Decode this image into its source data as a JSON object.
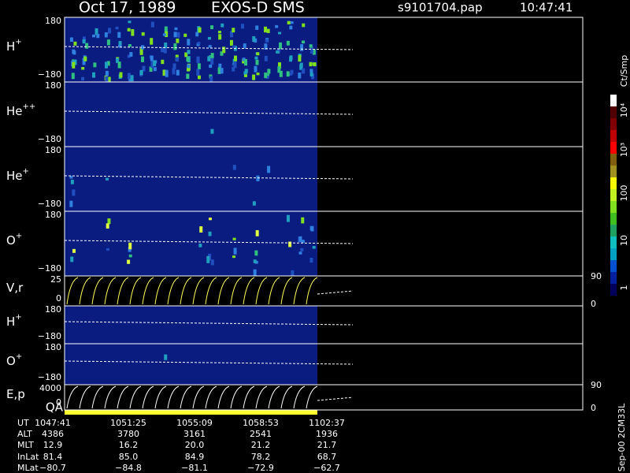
{
  "header": {
    "date": "Oct 17, 1989",
    "instrument": "EXOS-D SMS",
    "file": "s9101704.pap",
    "time": "10:47:41"
  },
  "panels": [
    {
      "label": "H",
      "charge": "+",
      "top": "180",
      "bottom": "−180"
    },
    {
      "label": "He",
      "charge": "++",
      "top": "180",
      "bottom": "−180"
    },
    {
      "label": "He",
      "charge": "+",
      "top": "180",
      "bottom": "−180"
    },
    {
      "label": "O",
      "charge": "+",
      "top": "180",
      "bottom": "−180"
    },
    {
      "label": "V,r",
      "top": "25",
      "bottom": "0",
      "right_top": "90",
      "right_bottom": "0"
    },
    {
      "label": "H",
      "charge": "+",
      "top": "180",
      "bottom": "−180"
    },
    {
      "label": "O",
      "charge": "+",
      "top": "180",
      "bottom": "−180"
    },
    {
      "label": "E,p",
      "top": "4000",
      "bottom": "0",
      "right_top": "90",
      "right_bottom": "0"
    }
  ],
  "qa_label": "QA",
  "colorbar": {
    "unit": "Ct/Smp",
    "ticks": [
      "10⁴",
      "10³",
      "100",
      "10",
      "1"
    ]
  },
  "ephemeris": {
    "rows": [
      [
        "UT",
        "1047:41",
        "1051:25",
        "1055:09",
        "1058:53",
        "1102:37"
      ],
      [
        "ALT",
        "4386",
        "3780",
        "3161",
        "2541",
        "1936"
      ],
      [
        "MLT",
        "12.9",
        "16.2",
        "20.0",
        "21.2",
        "21.7"
      ],
      [
        "InLat",
        "81.4",
        "85.0",
        "84.9",
        "78.2",
        "68.7"
      ],
      [
        "MLat",
        "−80.7",
        "−84.8",
        "−81.1",
        "−72.9",
        "−62.7"
      ]
    ]
  },
  "footer": "Sep-00 2CM33L"
}
